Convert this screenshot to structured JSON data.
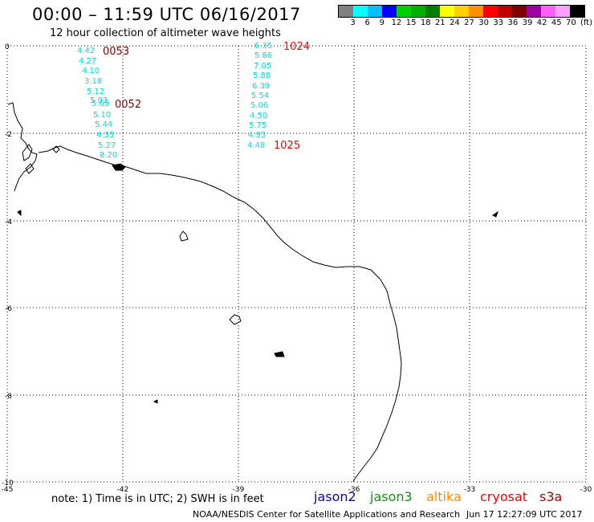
{
  "title": "00:00 – 11:59 UTC 06/16/2017",
  "subtitle": "12 hour collection of altimeter wave heights",
  "legend": {
    "colors": [
      "#808080",
      "#00ffff",
      "#00c0ff",
      "#0000ff",
      "#00d000",
      "#00b000",
      "#008000",
      "#ffff00",
      "#ffd000",
      "#ff9000",
      "#ff0000",
      "#c00000",
      "#800000",
      "#a000a0",
      "#ff60ff",
      "#ffa0ff",
      "#000000"
    ],
    "labels": [
      "3",
      "6",
      "9",
      "12",
      "15",
      "18",
      "21",
      "24",
      "27",
      "30",
      "33",
      "36",
      "39",
      "42",
      "45",
      "70"
    ],
    "unit": "(ft)"
  },
  "map": {
    "lon_ticks": [
      "-45",
      "-42",
      "-39",
      "-36",
      "-33",
      "-30"
    ],
    "lat_ticks": [
      "0",
      "-2",
      "-4",
      "-6",
      "-8",
      "-10"
    ],
    "track_west": {
      "start_time": "0053",
      "end_time": "0052",
      "values": [
        "4.42",
        "4.27",
        "4.10",
        "3.18",
        "5.12",
        "5.93",
        "5.69",
        "5.10",
        "5.44",
        "4.35",
        "5.27",
        "8.20"
      ]
    },
    "track_east": {
      "start_time": "1024",
      "end_time": "1025",
      "values": [
        "6.35",
        "5.86",
        "7.05",
        "5.88",
        "6.39",
        "5.54",
        "5.06",
        "4.50",
        "5.75",
        "4.93",
        "4.48"
      ]
    },
    "track_color": "#00dcdc",
    "time_color_west": "#8b0000",
    "time_color_east": "#ff0000"
  },
  "note": "note:  1) Time is in UTC;  2) SWH is in feet",
  "satellites": [
    {
      "name": "jason2",
      "color": "#0000dd"
    },
    {
      "name": "jason3",
      "color": "#00a000"
    },
    {
      "name": "altika",
      "color": "#ff8c00"
    },
    {
      "name": "cryosat",
      "color": "#ff0000"
    },
    {
      "name": "s3a",
      "color": "#b00000"
    }
  ],
  "credit": "NOAA/NESDIS Center for Satellite Applications and Research",
  "timestamp": "Jun 17 12:27:09 UTC 2017"
}
